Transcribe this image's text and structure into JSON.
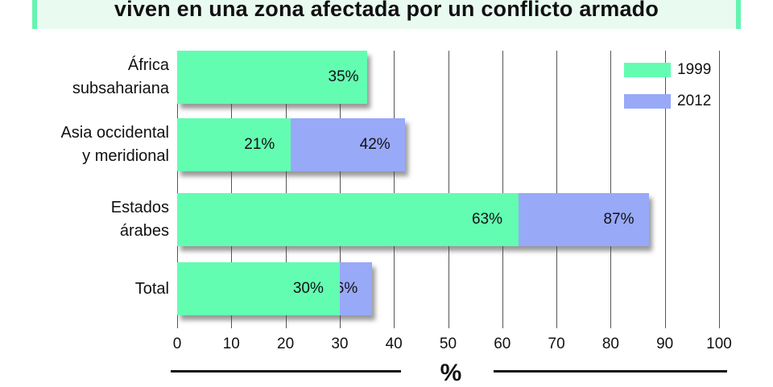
{
  "title": "viven en una zona afectada por un conflicto armado",
  "colors": {
    "s1999": "#63fdb2",
    "s2012": "#98a9f8",
    "title_border": "#63f5b0",
    "title_bg": "#e9fbf1"
  },
  "legend": [
    {
      "label": "1999",
      "color": "#63fdb2"
    },
    {
      "label": "2012",
      "color": "#98a9f8"
    }
  ],
  "axis": {
    "title": "%",
    "ticks": [
      "0",
      "10",
      "20",
      "30",
      "40",
      "50",
      "60",
      "70",
      "80",
      "90",
      "100"
    ]
  },
  "rows": [
    {
      "label_line1": "África",
      "label_line2": "subsahariana",
      "v1999": 35,
      "v2012": null,
      "l1999": "35%",
      "l2012": ""
    },
    {
      "label_line1": "Asia occidental",
      "label_line2": "y meridional",
      "v1999": 21,
      "v2012": 42,
      "l1999": "21%",
      "l2012": "42%"
    },
    {
      "label_line1": "Estados",
      "label_line2": "árabes",
      "v1999": 63,
      "v2012": 87,
      "l1999": "63%",
      "l2012": "87%"
    },
    {
      "label_line1": "Total",
      "label_line2": "",
      "v1999": 30,
      "v2012": 36,
      "l1999": "30%",
      "l2012": "36%"
    }
  ],
  "chart_data": {
    "type": "bar",
    "orientation": "horizontal",
    "title": "viven en una zona afectada por un conflicto armado",
    "categories": [
      "África subsahariana",
      "Asia occidental y meridional",
      "Estados árabes",
      "Total"
    ],
    "series": [
      {
        "name": "1999",
        "values": [
          35,
          21,
          63,
          30
        ],
        "color": "#63fdb2"
      },
      {
        "name": "2012",
        "values": [
          null,
          42,
          87,
          36
        ],
        "color": "#98a9f8"
      }
    ],
    "data_labels": [
      [
        "35%",
        null
      ],
      [
        "21%",
        "42%"
      ],
      [
        "63%",
        "87%"
      ],
      [
        "30%",
        "36%"
      ]
    ],
    "xlabel": "%",
    "ylabel": "",
    "xlim": [
      0,
      100
    ],
    "xticks": [
      0,
      10,
      20,
      30,
      40,
      50,
      60,
      70,
      80,
      90,
      100
    ],
    "grid": "vertical",
    "legend_position": "top-right",
    "note": "Bars are overlaid: 2012 bar drawn behind 1999 bar, extending to 2012 value"
  }
}
